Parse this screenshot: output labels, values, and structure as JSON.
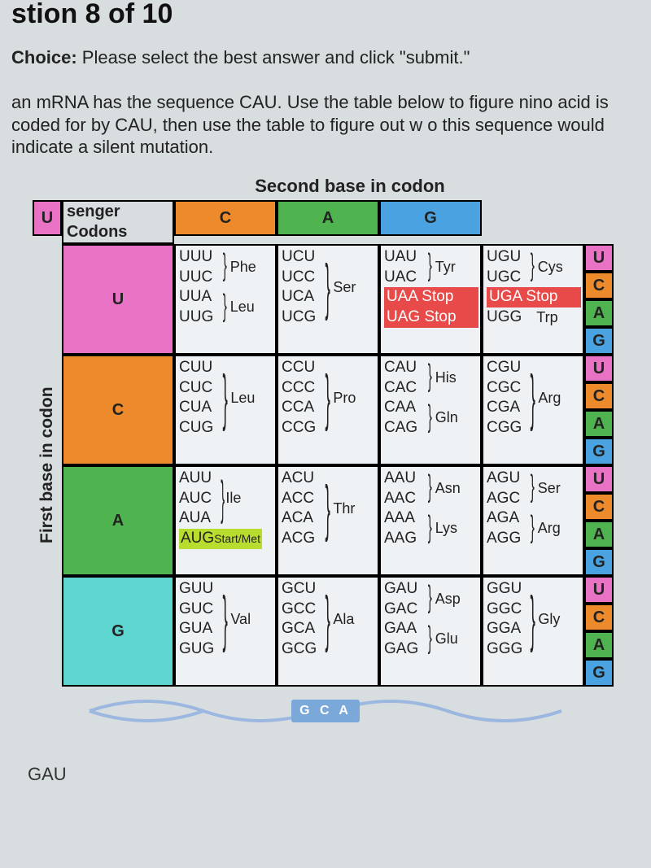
{
  "question_header": "stion 8 of 10",
  "choice_prefix": "Choice:",
  "choice_text": " Please select the best answer and click \"submit.\"",
  "body_text": "an mRNA has the sequence CAU. Use the table below to figure\nnino acid is coded for by CAU, then use the table to figure out w\no this sequence would indicate a silent mutation.",
  "corner_line1": "senger",
  "corner_line2": "Codons",
  "top_axis_label": "Second base in codon",
  "left_axis_label": "First base in codon",
  "answer_option": "GAU",
  "dna_center": "G C A",
  "colors": {
    "U": "#e873c5",
    "C": "#ed8a2b",
    "A": "#4fb34f",
    "G": "#4aa3e0",
    "row_U": "#e873c5",
    "row_C": "#ed8a2b",
    "row_A": "#4fb34f",
    "row_G": "#5fd5d0",
    "third_U": "#e873c5",
    "third_C": "#ed8a2b",
    "third_A": "#4fb34f",
    "third_G": "#4aa3e0",
    "cell_bg": "#eef2f4",
    "stop_bg": "#e84a4a",
    "start_bg": "#b8dd2e"
  },
  "second_bases": [
    "U",
    "C",
    "A",
    "G"
  ],
  "first_bases": [
    "U",
    "C",
    "A",
    "G"
  ],
  "third_bases": [
    "U",
    "C",
    "A",
    "G"
  ],
  "cells": {
    "U": {
      "U": {
        "groups": [
          {
            "codons": [
              "UUU",
              "UUC"
            ],
            "aa": "Phe"
          },
          {
            "codons": [
              "UUA",
              "UUG"
            ],
            "aa": "Leu"
          }
        ]
      },
      "C": {
        "groups": [
          {
            "codons": [
              "UCU",
              "UCC",
              "UCA",
              "UCG"
            ],
            "aa": "Ser"
          }
        ]
      },
      "A": {
        "groups": [
          {
            "codons": [
              "UAU",
              "UAC"
            ],
            "aa": "Tyr"
          }
        ],
        "stops": [
          "UAA  Stop",
          "UAG  Stop"
        ]
      },
      "G": {
        "groups": [
          {
            "codons": [
              "UGU",
              "UGC"
            ],
            "aa": "Cys"
          }
        ],
        "stops": [
          "UGA  Stop"
        ],
        "trp": {
          "codon": "UGG",
          "aa": "Trp"
        }
      }
    },
    "C": {
      "U": {
        "groups": [
          {
            "codons": [
              "CUU",
              "CUC",
              "CUA",
              "CUG"
            ],
            "aa": "Leu"
          }
        ]
      },
      "C": {
        "groups": [
          {
            "codons": [
              "CCU",
              "CCC",
              "CCA",
              "CCG"
            ],
            "aa": "Pro"
          }
        ]
      },
      "A": {
        "groups": [
          {
            "codons": [
              "CAU",
              "CAC"
            ],
            "aa": "His"
          },
          {
            "codons": [
              "CAA",
              "CAG"
            ],
            "aa": "Gln"
          }
        ]
      },
      "G": {
        "groups": [
          {
            "codons": [
              "CGU",
              "CGC",
              "CGA",
              "CGG"
            ],
            "aa": "Arg"
          }
        ]
      }
    },
    "A": {
      "U": {
        "groups": [
          {
            "codons": [
              "AUU",
              "AUC",
              "AUA"
            ],
            "aa": "Ile"
          }
        ],
        "start": {
          "codon": "AUG",
          "label": "Start/Met"
        }
      },
      "C": {
        "groups": [
          {
            "codons": [
              "ACU",
              "ACC",
              "ACA",
              "ACG"
            ],
            "aa": "Thr"
          }
        ]
      },
      "A": {
        "groups": [
          {
            "codons": [
              "AAU",
              "AAC"
            ],
            "aa": "Asn"
          },
          {
            "codons": [
              "AAA",
              "AAG"
            ],
            "aa": "Lys"
          }
        ]
      },
      "G": {
        "groups": [
          {
            "codons": [
              "AGU",
              "AGC"
            ],
            "aa": "Ser"
          },
          {
            "codons": [
              "AGA",
              "AGG"
            ],
            "aa": "Arg"
          }
        ]
      }
    },
    "G": {
      "U": {
        "groups": [
          {
            "codons": [
              "GUU",
              "GUC",
              "GUA",
              "GUG"
            ],
            "aa": "Val"
          }
        ]
      },
      "C": {
        "groups": [
          {
            "codons": [
              "GCU",
              "GCC",
              "GCA",
              "GCG"
            ],
            "aa": "Ala"
          }
        ]
      },
      "A": {
        "groups": [
          {
            "codons": [
              "GAU",
              "GAC"
            ],
            "aa": "Asp"
          },
          {
            "codons": [
              "GAA",
              "GAG"
            ],
            "aa": "Glu"
          }
        ]
      },
      "G": {
        "groups": [
          {
            "codons": [
              "GGU",
              "GGC",
              "GGA",
              "GGG"
            ],
            "aa": "Gly"
          }
        ]
      }
    }
  }
}
